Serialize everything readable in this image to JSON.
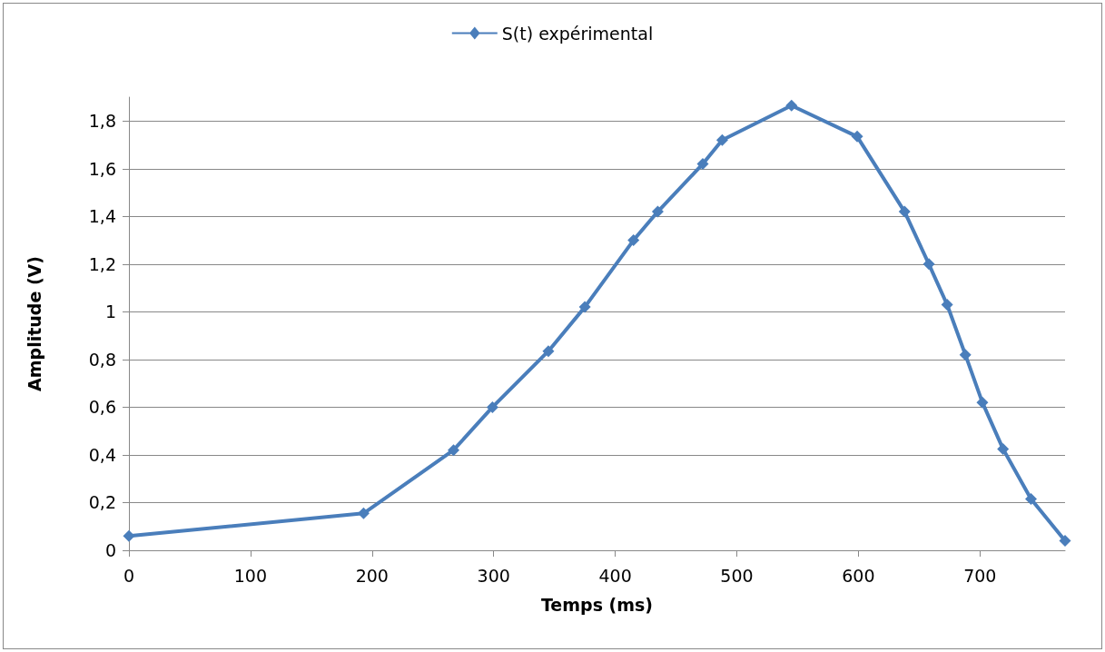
{
  "chart_data": {
    "type": "line",
    "xlabel": "Temps (ms)",
    "ylabel": "Amplitude (V)",
    "x": [
      0,
      193,
      267,
      299,
      345,
      375,
      415,
      435,
      472,
      488,
      545,
      599,
      638,
      658,
      673,
      688,
      702,
      719,
      742,
      770
    ],
    "series": [
      {
        "name": "S(t) expérimental",
        "color": "#4a7ebb",
        "values": [
          0.06,
          0.155,
          0.42,
          0.6,
          0.835,
          1.02,
          1.3,
          1.42,
          1.62,
          1.72,
          1.865,
          1.735,
          1.42,
          1.2,
          1.03,
          0.82,
          0.62,
          0.425,
          0.215,
          0.04
        ]
      }
    ],
    "xlim": [
      0,
      770
    ],
    "xticks": [
      0,
      100,
      200,
      300,
      400,
      500,
      600,
      700
    ],
    "ylim": [
      0,
      1.9
    ],
    "yticks": [
      0,
      {
        "value": 0.2,
        "label": "0,2"
      },
      {
        "value": 0.4,
        "label": "0,4"
      },
      {
        "value": 0.6,
        "label": "0,6"
      },
      {
        "value": 0.8,
        "label": "0,8"
      },
      1,
      {
        "value": 1.2,
        "label": "1,2"
      },
      {
        "value": 1.4,
        "label": "1,4"
      },
      {
        "value": 1.6,
        "label": "1,6"
      },
      {
        "value": 1.8,
        "label": "1,8"
      }
    ],
    "grid": "y",
    "legend": "top",
    "marker": "diamond",
    "line_style": "solid"
  }
}
